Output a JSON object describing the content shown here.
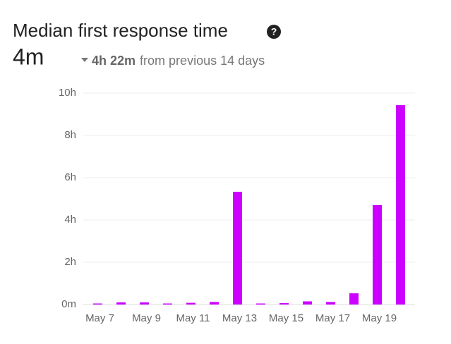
{
  "chart_data": {
    "type": "bar",
    "title": "Median first response time",
    "summary": {
      "value": "4m",
      "change": "4h 22m",
      "change_note": "from previous 14 days"
    },
    "categories": [
      "May 7",
      null,
      "May 9",
      null,
      "May 11",
      null,
      "May 13",
      null,
      "May 15",
      null,
      "May 17",
      null,
      "May 19",
      null
    ],
    "values": [
      0.05,
      0.1,
      0.1,
      0.05,
      0.08,
      0.12,
      5.33,
      0.05,
      0.07,
      0.15,
      0.12,
      0.53,
      4.7,
      9.43
    ],
    "color": "#cc00ff",
    "ylim": [
      0,
      10
    ],
    "yticks": [
      {
        "value": 0,
        "label": "0m"
      },
      {
        "value": 2,
        "label": "2h"
      },
      {
        "value": 4,
        "label": "4h"
      },
      {
        "value": 6,
        "label": "6h"
      },
      {
        "value": 8,
        "label": "8h"
      },
      {
        "value": 10,
        "label": "10h"
      }
    ],
    "grid": true
  }
}
